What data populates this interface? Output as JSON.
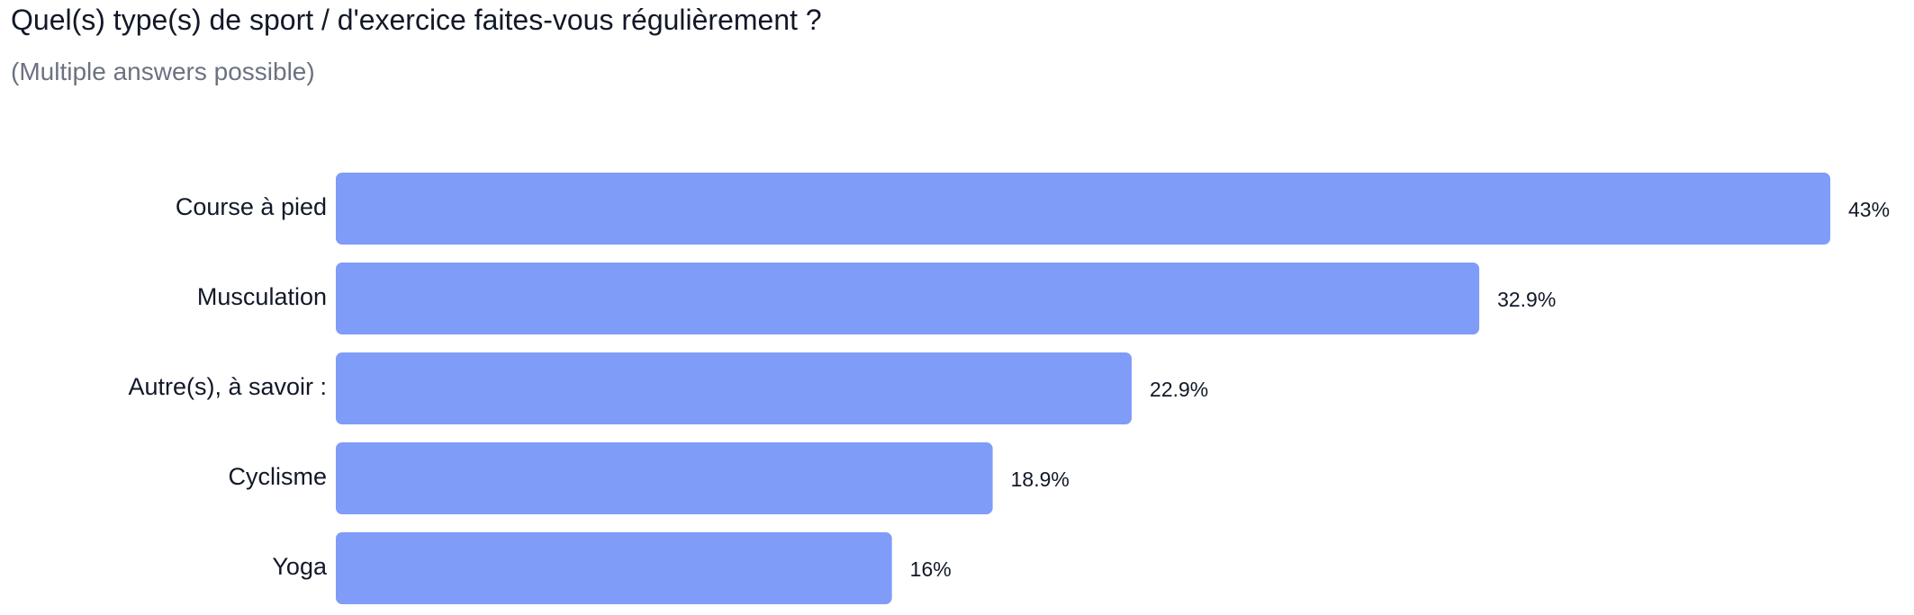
{
  "chart_data": {
    "type": "bar",
    "orientation": "horizontal",
    "title": "Quel(s) type(s) de sport / d'exercice faites-vous régulièrement ?",
    "subtitle": "(Multiple answers possible)",
    "categories": [
      "Course à pied",
      "Musculation",
      "Autre(s), à savoir :",
      "Cyclisme",
      "Yoga"
    ],
    "values": [
      43,
      32.9,
      22.9,
      18.9,
      16
    ],
    "value_labels": [
      "43%",
      "32.9%",
      "22.9%",
      "18.9%",
      "16%"
    ],
    "unit": "%",
    "grid": false,
    "legend": "none",
    "bar_color": "#7f9cf8"
  }
}
